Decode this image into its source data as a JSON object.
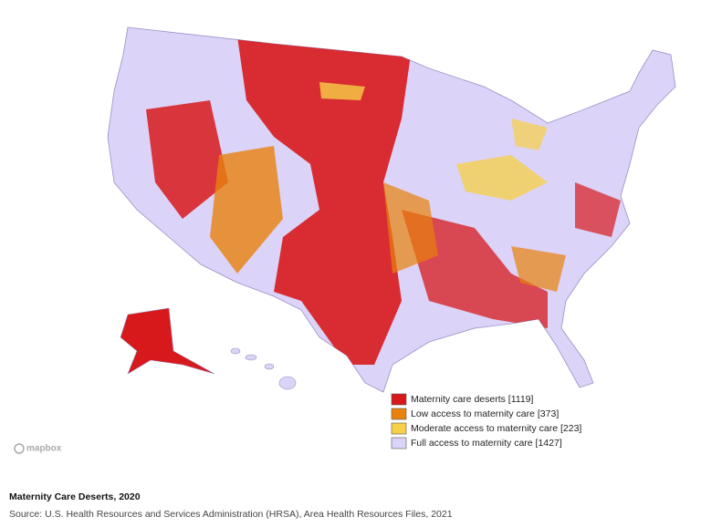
{
  "map": {
    "legend": [
      {
        "label": "Maternity care deserts [1119]",
        "color": "#d7191c"
      },
      {
        "label": "Low access to maternity care [373]",
        "color": "#e8820c"
      },
      {
        "label": "Moderate access to maternity care [223]",
        "color": "#f6d046"
      },
      {
        "label": "Full access to maternity care [1427]",
        "color": "#dcd3f8"
      }
    ],
    "attribution": "mapbox"
  },
  "footer": {
    "title": "Maternity Care Deserts, 2020",
    "source": "Source: U.S. Health Resources and Services Administration (HRSA), Area Health Resources Files, 2021"
  }
}
